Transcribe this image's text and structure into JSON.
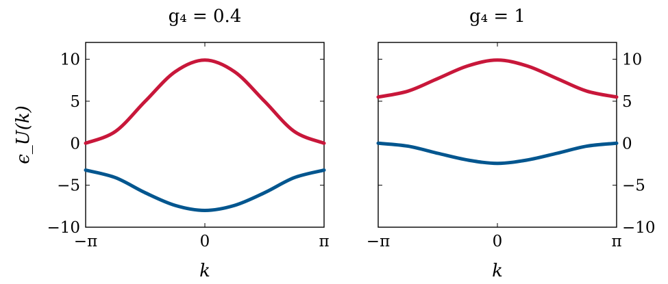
{
  "chart_data": [
    {
      "type": "line",
      "title": "g₄ = 0.4",
      "xlabel": "k",
      "ylabel": "ϵ_U(k)",
      "xlim": [
        -3.1416,
        3.1416
      ],
      "ylim": [
        -10,
        12
      ],
      "x_tick_values": [
        -3.1416,
        0,
        3.1416
      ],
      "x_tick_labels": [
        "−π",
        "0",
        "π"
      ],
      "y_tick_values": [
        -10,
        -5,
        0,
        5,
        10
      ],
      "y_tick_labels": [
        "−10",
        "−5",
        "0",
        "5",
        "10"
      ],
      "y_tick_side": "left",
      "grid": false,
      "legend": "none",
      "x": [
        -3.1416,
        -2.3562,
        -1.5708,
        -0.7854,
        0,
        0.7854,
        1.5708,
        2.3562,
        3.1416
      ],
      "series": [
        {
          "color": "#c8173a",
          "values": [
            0.0,
            1.4,
            5.0,
            8.5,
            9.9,
            8.5,
            5.0,
            1.4,
            0.0
          ]
        },
        {
          "color": "#03568f",
          "values": [
            -3.2,
            -4.1,
            -5.9,
            -7.4,
            -8.0,
            -7.4,
            -5.9,
            -4.1,
            -3.2
          ]
        }
      ]
    },
    {
      "type": "line",
      "title": "g₄ = 1",
      "xlabel": "k",
      "ylabel": "",
      "xlim": [
        -3.1416,
        3.1416
      ],
      "ylim": [
        -10,
        12
      ],
      "x_tick_values": [
        -3.1416,
        0,
        3.1416
      ],
      "x_tick_labels": [
        "−π",
        "0",
        "π"
      ],
      "y_tick_values": [
        -10,
        -5,
        0,
        5,
        10
      ],
      "y_tick_labels": [
        "−10",
        "−5",
        "0",
        "5",
        "10"
      ],
      "y_tick_side": "right",
      "grid": false,
      "legend": "none",
      "x": [
        -3.1416,
        -2.3562,
        -1.5708,
        -0.7854,
        0,
        0.7854,
        1.5708,
        2.3562,
        3.1416
      ],
      "series": [
        {
          "color": "#c8173a",
          "values": [
            5.5,
            6.2,
            7.7,
            9.2,
            9.9,
            9.2,
            7.7,
            6.2,
            5.5
          ]
        },
        {
          "color": "#03568f",
          "values": [
            0.0,
            -0.35,
            -1.2,
            -2.0,
            -2.4,
            -2.0,
            -1.2,
            -0.35,
            0.0
          ]
        }
      ]
    }
  ]
}
